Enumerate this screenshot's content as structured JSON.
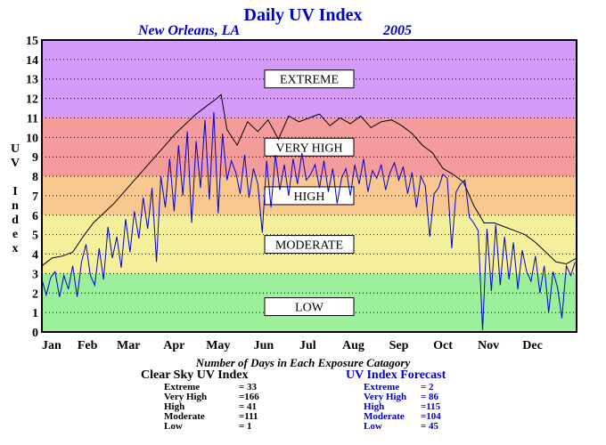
{
  "title": "Daily UV Index",
  "location": "New Orleans, LA",
  "year": "2005",
  "footer_title": "Number of Days in Each Exposure Catagory",
  "clear_sky": {
    "heading": "Clear Sky UV Index",
    "rows": [
      {
        "label": "Extreme",
        "value": "=  33"
      },
      {
        "label": "Very High",
        "value": "=166"
      },
      {
        "label": "High",
        "value": "=  41"
      },
      {
        "label": "Moderate",
        "value": "=111"
      },
      {
        "label": "Low",
        "value": "=    1"
      }
    ]
  },
  "forecast": {
    "heading": "UV Index Forecast",
    "rows": [
      {
        "label": "Extreme",
        "value": "=    2"
      },
      {
        "label": "Very High",
        "value": "=  86"
      },
      {
        "label": "High",
        "value": "=115"
      },
      {
        "label": "Moderate",
        "value": "=104"
      },
      {
        "label": "Low",
        "value": "=  45"
      }
    ]
  },
  "chart_data": {
    "type": "line",
    "ylabel": "UV Index",
    "ylim": [
      0,
      15
    ],
    "yticks": [
      0,
      1,
      2,
      3,
      4,
      5,
      6,
      7,
      8,
      9,
      10,
      11,
      12,
      13,
      14,
      15
    ],
    "xlim": [
      1,
      365
    ],
    "months": [
      "Jan",
      "Feb",
      "Mar",
      "Apr",
      "May",
      "Jun",
      "Jul",
      "Aug",
      "Sep",
      "Oct",
      "Nov",
      "Dec"
    ],
    "grid": true,
    "categories": [
      {
        "name": "LOW",
        "range": [
          0,
          3
        ],
        "color": "#9cf09c"
      },
      {
        "name": "MODERATE",
        "range": [
          3,
          6
        ],
        "color": "#f4f09c"
      },
      {
        "name": "HIGH",
        "range": [
          6,
          8
        ],
        "color": "#f8c890"
      },
      {
        "name": "VERY HIGH",
        "range": [
          8,
          11
        ],
        "color": "#f49c9c"
      },
      {
        "name": "EXTREME",
        "range": [
          11,
          15
        ],
        "color": "#d49cf8"
      }
    ],
    "series": [
      {
        "name": "Clear Sky UV Index",
        "color": "#000000",
        "x": [
          1,
          8,
          15,
          22,
          29,
          36,
          43,
          50,
          57,
          64,
          71,
          78,
          85,
          92,
          99,
          106,
          113,
          120,
          123,
          127,
          134,
          141,
          148,
          155,
          162,
          169,
          176,
          183,
          190,
          197,
          204,
          211,
          218,
          225,
          232,
          239,
          246,
          253,
          260,
          267,
          274,
          281,
          288,
          295,
          302,
          309,
          316,
          323,
          330,
          337,
          344,
          351,
          358,
          365
        ],
        "y": [
          3.4,
          3.8,
          3.9,
          4.1,
          4.9,
          5.6,
          6.1,
          6.6,
          7.2,
          7.8,
          8.4,
          9.0,
          9.6,
          10.2,
          10.7,
          11.2,
          11.6,
          12.0,
          12.2,
          10.4,
          9.6,
          10.8,
          10.3,
          10.9,
          9.9,
          11.1,
          10.8,
          11.0,
          11.2,
          10.6,
          11.0,
          10.7,
          11.1,
          10.5,
          10.8,
          10.9,
          10.6,
          10.2,
          9.6,
          9.2,
          8.4,
          8.1,
          7.7,
          6.5,
          5.6,
          5.6,
          5.4,
          5.2,
          5.0,
          4.6,
          4.1,
          3.6,
          3.5,
          3.8
        ]
      },
      {
        "name": "UV Index Forecast",
        "color": "#0000cc",
        "x": [
          1,
          4,
          7,
          10,
          13,
          16,
          19,
          22,
          25,
          28,
          31,
          34,
          37,
          40,
          43,
          46,
          49,
          52,
          55,
          58,
          61,
          64,
          67,
          70,
          73,
          76,
          79,
          82,
          85,
          88,
          91,
          94,
          97,
          100,
          103,
          106,
          109,
          112,
          115,
          118,
          121,
          124,
          127,
          130,
          133,
          136,
          139,
          142,
          145,
          148,
          151,
          154,
          157,
          160,
          163,
          166,
          169,
          172,
          175,
          178,
          181,
          184,
          187,
          190,
          193,
          196,
          199,
          202,
          205,
          208,
          211,
          214,
          217,
          220,
          223,
          226,
          229,
          232,
          235,
          238,
          241,
          244,
          247,
          250,
          253,
          256,
          259,
          262,
          265,
          268,
          271,
          274,
          277,
          280,
          283,
          286,
          289,
          292,
          295,
          298,
          301,
          304,
          307,
          310,
          313,
          316,
          319,
          322,
          325,
          328,
          331,
          334,
          337,
          340,
          343,
          346,
          349,
          352,
          355,
          358,
          361,
          364
        ],
        "y": [
          2.7,
          1.9,
          2.8,
          3.1,
          1.8,
          2.9,
          2.2,
          3.4,
          1.8,
          3.6,
          4.5,
          2.9,
          2.4,
          4.3,
          2.7,
          5.4,
          3.8,
          4.9,
          3.3,
          5.8,
          4.1,
          6.2,
          4.8,
          6.9,
          5.3,
          7.4,
          3.6,
          8.0,
          6.4,
          8.9,
          6.2,
          9.6,
          7.0,
          10.3,
          5.6,
          9.8,
          7.4,
          10.9,
          6.8,
          11.3,
          6.1,
          10.2,
          7.8,
          8.8,
          8.2,
          7.1,
          9.1,
          6.9,
          8.4,
          7.6,
          5.1,
          8.8,
          6.4,
          9.1,
          7.3,
          8.6,
          7.0,
          8.9,
          7.6,
          9.2,
          7.8,
          8.1,
          8.6,
          7.4,
          8.8,
          7.2,
          8.4,
          6.6,
          7.9,
          8.4,
          7.0,
          8.6,
          7.6,
          8.9,
          7.2,
          8.3,
          7.9,
          8.6,
          7.3,
          8.2,
          8.7,
          7.8,
          8.5,
          7.1,
          8.2,
          6.4,
          8.0,
          7.5,
          4.9,
          7.1,
          7.4,
          8.1,
          7.9,
          4.3,
          7.2,
          7.6,
          7.8,
          5.9,
          5.6,
          5.2,
          0.1,
          5.3,
          2.1,
          5.5,
          2.4,
          4.9,
          2.7,
          4.6,
          2.2,
          4.2,
          3.1,
          2.6,
          3.9,
          2.0,
          3.4,
          1.0,
          3.1,
          2.3,
          0.7,
          3.4,
          2.9,
          3.6
        ]
      }
    ]
  }
}
